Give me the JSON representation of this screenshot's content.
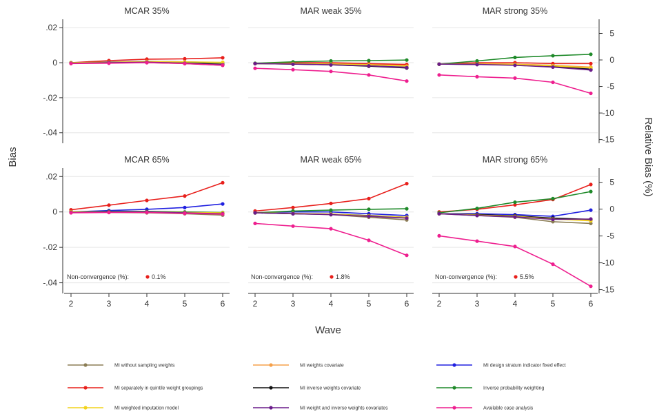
{
  "chart_data": {
    "type": "line",
    "xlabel": "Wave",
    "ylabel": "Bias",
    "ylabel_right": "Relative Bias (%)",
    "x": [
      2,
      3,
      4,
      5,
      6
    ],
    "x_ticks": [
      "2",
      "3",
      "4",
      "5",
      "6"
    ],
    "ylim": [
      -0.046,
      0.024
    ],
    "y_ticks": [
      ".02",
      "0",
      "-.02",
      "-.04"
    ],
    "y_tick_values": [
      0.02,
      0,
      -0.02,
      -0.04
    ],
    "ylim_right": [
      -15.7,
      7.4
    ],
    "right_ticks": [
      "5",
      "0",
      "-5",
      "-10",
      "-15"
    ],
    "right_tick_values": [
      5,
      0,
      -5,
      -10,
      -15
    ],
    "grid": true,
    "legend_position": "bottom",
    "legend": [
      {
        "name": "MI without sampling weights",
        "color": "#8b7d55"
      },
      {
        "name": "MI weights covariate",
        "color": "#f5a04a"
      },
      {
        "name": "MI design stratum indicator fixed effect",
        "color": "#2020e0"
      },
      {
        "name": "MI separately in quintile weight groupings",
        "color": "#e8201c"
      },
      {
        "name": "MI inverse weights covariate",
        "color": "#111111"
      },
      {
        "name": "Inverse probability weighting",
        "color": "#1f8a2a"
      },
      {
        "name": "MI weighted imputation model",
        "color": "#f2d31c"
      },
      {
        "name": "MI weight and inverse weights covariates",
        "color": "#6a1b8a"
      },
      {
        "name": "Available case analysis",
        "color": "#ee1f8f"
      }
    ],
    "nonconvergence_label": "Non-convergence (%):",
    "panels": [
      {
        "title": "MCAR 35%",
        "series": [
          {
            "values": [
              0.0,
              0.0,
              0.0,
              -0.0005,
              -0.0015
            ]
          },
          {
            "values": [
              0.0,
              0.0,
              0.0005,
              0.0,
              -0.0008
            ]
          },
          {
            "values": [
              0.0,
              0.0005,
              0.0008,
              0.0005,
              0.0
            ]
          },
          {
            "values": [
              0.0,
              0.0012,
              0.002,
              0.0022,
              0.0028
            ]
          },
          {
            "values": [
              0.0,
              0.0003,
              0.0005,
              0.0,
              -0.001
            ]
          },
          {
            "values": [
              0.0,
              0.0002,
              0.0005,
              0.0002,
              0.0
            ]
          },
          {
            "values": [
              0.0,
              0.0003,
              0.0007,
              0.0005,
              0.0002
            ]
          },
          {
            "values": [
              -0.0003,
              0.0,
              0.0003,
              -0.0003,
              -0.0012
            ]
          },
          {
            "values": [
              -0.0005,
              -0.0003,
              0.0,
              -0.0005,
              -0.0015
            ]
          }
        ]
      },
      {
        "title": "MAR weak 35%",
        "series": [
          {
            "values": [
              -0.0005,
              -0.0005,
              -0.001,
              -0.0015,
              -0.0025
            ]
          },
          {
            "values": [
              -0.0005,
              -0.0003,
              -0.0005,
              -0.001,
              -0.0015
            ]
          },
          {
            "values": [
              -0.0005,
              -0.0003,
              -0.0008,
              -0.0015,
              -0.0025
            ]
          },
          {
            "values": [
              -0.0005,
              0.0,
              0.0,
              -0.0005,
              -0.001
            ]
          },
          {
            "values": [
              -0.0005,
              -0.0008,
              -0.0012,
              -0.002,
              -0.003
            ]
          },
          {
            "values": [
              -0.0003,
              0.0005,
              0.001,
              0.0012,
              0.0015
            ]
          },
          {
            "values": [
              -0.0005,
              -0.0005,
              -0.0008,
              -0.0012,
              -0.002
            ]
          },
          {
            "values": [
              -0.0005,
              -0.0008,
              -0.0012,
              -0.0018,
              -0.0028
            ]
          },
          {
            "values": [
              -0.0032,
              -0.004,
              -0.005,
              -0.007,
              -0.0105
            ]
          }
        ]
      },
      {
        "title": "MAR strong 35%",
        "series": [
          {
            "values": [
              -0.0008,
              -0.0008,
              -0.001,
              -0.0015,
              -0.0028
            ]
          },
          {
            "values": [
              -0.0008,
              -0.0005,
              -0.0008,
              -0.0015,
              -0.0025
            ]
          },
          {
            "values": [
              -0.0008,
              -0.0008,
              -0.0012,
              -0.002,
              -0.0032
            ]
          },
          {
            "values": [
              -0.0008,
              0.0,
              0.0,
              -0.0005,
              -0.0005
            ]
          },
          {
            "values": [
              -0.0008,
              -0.001,
              -0.0012,
              -0.0022,
              -0.0038
            ]
          },
          {
            "values": [
              -0.0008,
              0.001,
              0.003,
              0.004,
              0.0048
            ]
          },
          {
            "values": [
              -0.0008,
              -0.0008,
              -0.001,
              -0.0018,
              -0.003
            ]
          },
          {
            "values": [
              -0.0008,
              -0.001,
              -0.0015,
              -0.0025,
              -0.0042
            ]
          },
          {
            "values": [
              -0.007,
              -0.008,
              -0.0088,
              -0.0112,
              -0.0175
            ]
          }
        ]
      },
      {
        "title": "MCAR 65%",
        "nonconvergence": "0.1%",
        "series": [
          {
            "values": [
              0.0,
              -0.0003,
              -0.0005,
              -0.001,
              -0.0018
            ]
          },
          {
            "values": [
              0.0,
              0.0,
              0.0,
              -0.0005,
              -0.001
            ]
          },
          {
            "values": [
              0.0,
              0.0008,
              0.0015,
              0.0025,
              0.0045
            ]
          },
          {
            "values": [
              0.0012,
              0.0038,
              0.0065,
              0.009,
              0.0165
            ]
          },
          {
            "values": [
              0.0,
              0.0,
              0.0,
              -0.0005,
              -0.001
            ]
          },
          {
            "values": [
              0.0,
              0.0003,
              0.0003,
              0.0,
              -0.0003
            ]
          },
          {
            "values": [
              0.0,
              0.0,
              0.0,
              -0.0003,
              -0.0005
            ]
          },
          {
            "values": [
              -0.0003,
              0.0,
              0.0,
              -0.0005,
              -0.001
            ]
          },
          {
            "values": [
              -0.0005,
              -0.0003,
              -0.0003,
              -0.0008,
              -0.0012
            ]
          }
        ]
      },
      {
        "title": "MAR weak 65%",
        "nonconvergence": "1.8%",
        "series": [
          {
            "values": [
              -0.0005,
              -0.001,
              -0.0015,
              -0.003,
              -0.0045
            ]
          },
          {
            "values": [
              -0.0005,
              -0.0008,
              -0.0012,
              -0.0025,
              -0.0035
            ]
          },
          {
            "values": [
              -0.0005,
              0.0,
              0.0,
              -0.001,
              -0.002
            ]
          },
          {
            "values": [
              0.0005,
              0.0025,
              0.0048,
              0.0075,
              0.016
            ]
          },
          {
            "values": [
              -0.0005,
              -0.001,
              -0.0012,
              -0.002,
              -0.003
            ]
          },
          {
            "values": [
              -0.0005,
              0.0005,
              0.001,
              0.0015,
              0.0018
            ]
          },
          {
            "values": [
              -0.0005,
              -0.0008,
              -0.0012,
              -0.0022,
              -0.003
            ]
          },
          {
            "values": [
              -0.0005,
              -0.001,
              -0.0015,
              -0.0025,
              -0.0035
            ]
          },
          {
            "values": [
              -0.0065,
              -0.008,
              -0.0095,
              -0.016,
              -0.0245
            ]
          }
        ]
      },
      {
        "title": "MAR strong 65%",
        "nonconvergence": "5.5%",
        "series": [
          {
            "values": [
              -0.001,
              -0.002,
              -0.003,
              -0.0055,
              -0.0065
            ]
          },
          {
            "values": [
              -0.001,
              -0.0015,
              -0.0025,
              -0.004,
              -0.0048
            ]
          },
          {
            "values": [
              -0.001,
              -0.001,
              -0.0015,
              -0.0025,
              0.001
            ]
          },
          {
            "values": [
              0.0,
              0.0015,
              0.004,
              0.007,
              0.0155
            ]
          },
          {
            "values": [
              -0.001,
              -0.0015,
              -0.0022,
              -0.0035,
              -0.0042
            ]
          },
          {
            "values": [
              -0.0005,
              0.002,
              0.0055,
              0.0075,
              0.0115
            ]
          },
          {
            "values": [
              -0.001,
              -0.0018,
              -0.0025,
              -0.004,
              -0.005
            ]
          },
          {
            "values": [
              -0.001,
              -0.002,
              -0.0028,
              -0.0042,
              -0.004
            ]
          },
          {
            "values": [
              -0.0135,
              -0.0165,
              -0.0195,
              -0.0295,
              -0.042
            ]
          }
        ]
      }
    ]
  }
}
